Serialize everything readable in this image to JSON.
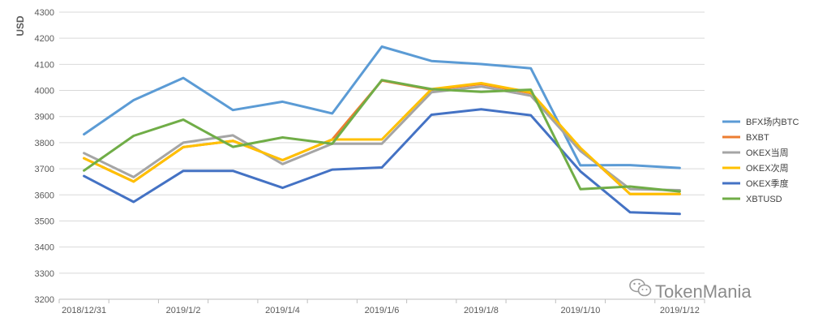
{
  "chart_data": {
    "type": "line",
    "ylabel": "USD",
    "xlabel": "",
    "ylim": [
      3200,
      4300
    ],
    "yticks": [
      3200,
      3300,
      3400,
      3500,
      3600,
      3700,
      3800,
      3900,
      4000,
      4100,
      4200,
      4300
    ],
    "x": [
      "2018/12/31",
      "2019/1/1",
      "2019/1/2",
      "2019/1/3",
      "2019/1/4",
      "2019/1/5",
      "2019/1/6",
      "2019/1/7",
      "2019/1/8",
      "2019/1/9",
      "2019/1/10",
      "2019/1/11",
      "2019/1/12"
    ],
    "xtick_labels": [
      "2018/12/31",
      "2019/1/2",
      "2019/1/4",
      "2019/1/6",
      "2019/1/8",
      "2019/1/10",
      "2019/1/12"
    ],
    "grid": "horizontal",
    "legend_position": "right",
    "series": [
      {
        "name": "BFX场内BTC",
        "color": "#5b9bd5",
        "values": [
          3832,
          3963,
          4048,
          3925,
          3957,
          3912,
          4168,
          4113,
          4101,
          4085,
          3713,
          3714,
          3703
        ]
      },
      {
        "name": "BXBT",
        "color": "#ed7d31",
        "values": [
          3740,
          3651,
          3783,
          3807,
          3733,
          3812,
          4038,
          4003,
          4025,
          3990,
          3778,
          3603,
          3603
        ]
      },
      {
        "name": "OKEX当周",
        "color": "#a5a5a5",
        "values": [
          3760,
          3668,
          3800,
          3828,
          3718,
          3796,
          3796,
          3993,
          4015,
          3980,
          3768,
          3622,
          3618
        ]
      },
      {
        "name": "OKEX次周",
        "color": "#ffc000",
        "values": [
          3740,
          3651,
          3783,
          3807,
          3733,
          3812,
          3812,
          4005,
          4028,
          3993,
          3780,
          3603,
          3603
        ]
      },
      {
        "name": "OKEX季度",
        "color": "#4472c4",
        "values": [
          3672,
          3573,
          3692,
          3692,
          3627,
          3697,
          3705,
          3907,
          3928,
          3905,
          3690,
          3533,
          3527
        ]
      },
      {
        "name": "XBTUSD",
        "color": "#70ad47",
        "values": [
          3693,
          3826,
          3888,
          3784,
          3820,
          3796,
          4040,
          4005,
          3995,
          4003,
          3622,
          3632,
          3613
        ]
      }
    ]
  },
  "watermark": {
    "text": "TokenMania",
    "icon": "wechat-icon"
  }
}
